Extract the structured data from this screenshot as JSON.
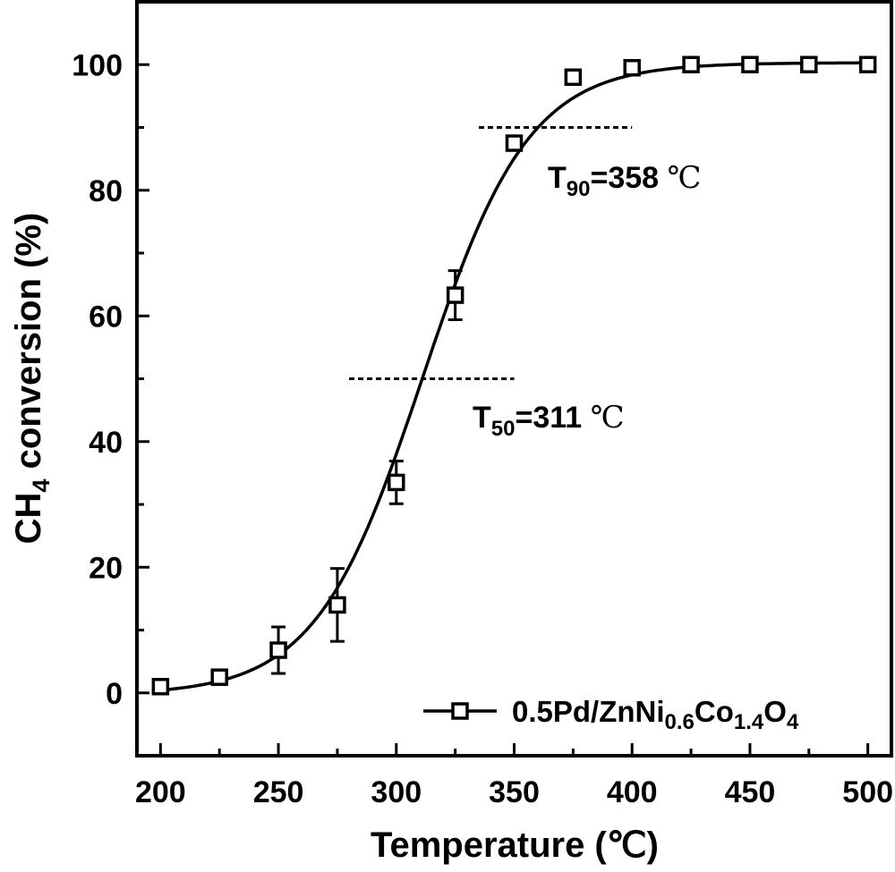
{
  "chart_data": {
    "type": "scatter",
    "xlabel": "Temperature (℃)",
    "ylabel": "CH4 conversion (%)",
    "xlim": [
      190,
      510
    ],
    "ylim": [
      -10,
      110
    ],
    "xticks": [
      200,
      250,
      300,
      350,
      400,
      450,
      500
    ],
    "yticks": [
      0,
      20,
      40,
      60,
      80,
      100
    ],
    "minor_x_step": 25,
    "minor_y_step": 10,
    "grid": false,
    "legend_position": "bottom-right",
    "series": [
      {
        "name": "0.5Pd/ZnNi0.6Co1.4O4",
        "marker": "open-square",
        "color": "#000000",
        "x": [
          200,
          225,
          250,
          275,
          300,
          325,
          350,
          375,
          400,
          425,
          450,
          475,
          500
        ],
        "y": [
          1.0,
          2.5,
          6.8,
          14.0,
          33.5,
          63.3,
          87.5,
          98.0,
          99.5,
          100,
          100,
          100,
          100
        ],
        "yerr": [
          0.5,
          0.8,
          3.7,
          5.8,
          3.4,
          3.9,
          0.8,
          0.8,
          0.5,
          0.3,
          0.3,
          0.3,
          0.3
        ],
        "fit_curve": {
          "type": "sigmoid",
          "x_range": [
            200,
            500
          ]
        }
      }
    ],
    "annotations": [
      {
        "id": "t50",
        "main": "T",
        "sub": "50",
        "rest": "=311 ",
        "unit": "℃",
        "dashed_line": {
          "x_from": 280,
          "x_to": 350,
          "y": 50
        }
      },
      {
        "id": "t90",
        "main": "T",
        "sub": "90",
        "rest": "=358 ",
        "unit": "℃",
        "dashed_line": {
          "x_from": 335,
          "x_to": 400,
          "y": 90
        }
      }
    ],
    "legend": {
      "text_main": "0.5Pd/ZnNi",
      "sub1": "0.6",
      "text_mid": "Co",
      "sub2": "1.4",
      "text_end": "O",
      "sub3": "4"
    },
    "ylabel_parts": {
      "a": "CH",
      "sub": "4",
      "b": " conversion (%)"
    }
  }
}
